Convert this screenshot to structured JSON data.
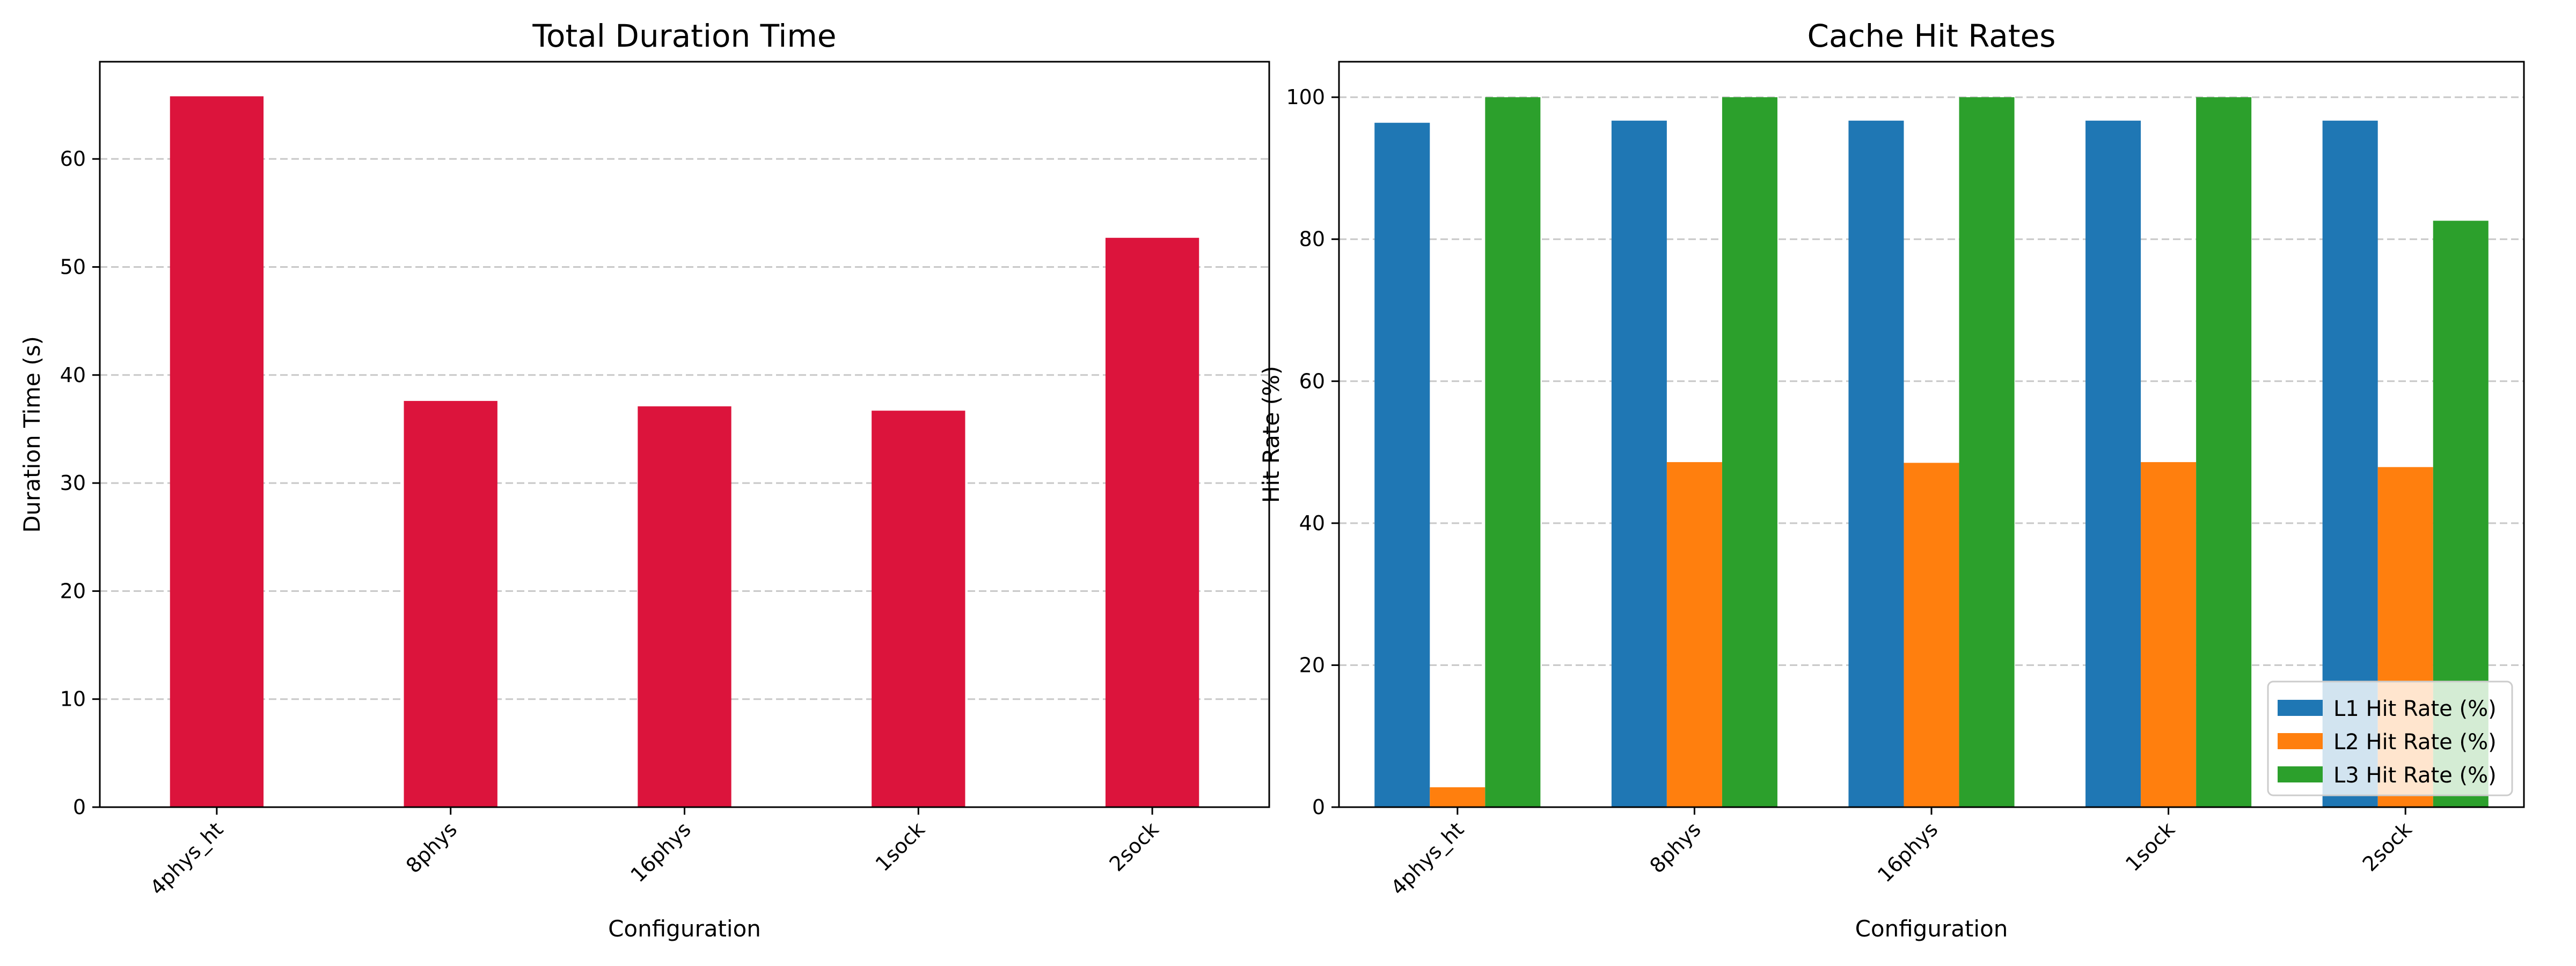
{
  "chart_data": [
    {
      "type": "bar",
      "title": "Total Duration Time",
      "xlabel": "Configuration",
      "ylabel": "Duration Time (s)",
      "categories": [
        "4phys_ht",
        "8phys",
        "16phys",
        "1sock",
        "2sock"
      ],
      "series": [
        {
          "values": [
            65.8,
            37.6,
            37.1,
            36.7,
            52.7
          ],
          "color": "#dc143c"
        }
      ],
      "ylim": [
        0,
        69
      ],
      "yticks": [
        0,
        10,
        20,
        30,
        40,
        50,
        60
      ],
      "grid": "y-dashed",
      "legend": "none"
    },
    {
      "type": "bar",
      "title": "Cache Hit Rates",
      "xlabel": "Configuration",
      "ylabel": "Hit Rate (%)",
      "categories": [
        "4phys_ht",
        "8phys",
        "16phys",
        "1sock",
        "2sock"
      ],
      "series": [
        {
          "name": "L1 Hit Rate (%)",
          "values": [
            96.4,
            96.7,
            96.7,
            96.7,
            96.7
          ],
          "color": "#1f77b4"
        },
        {
          "name": "L2 Hit Rate (%)",
          "values": [
            2.8,
            48.6,
            48.5,
            48.6,
            47.9
          ],
          "color": "#ff7f0e"
        },
        {
          "name": "L3 Hit Rate (%)",
          "values": [
            100.0,
            100.0,
            100.0,
            100.0,
            82.6
          ],
          "color": "#2ca02c"
        }
      ],
      "ylim": [
        0,
        105
      ],
      "yticks": [
        0,
        20,
        40,
        60,
        80,
        100
      ],
      "grid": "y-dashed",
      "legend": "lower-right"
    }
  ]
}
